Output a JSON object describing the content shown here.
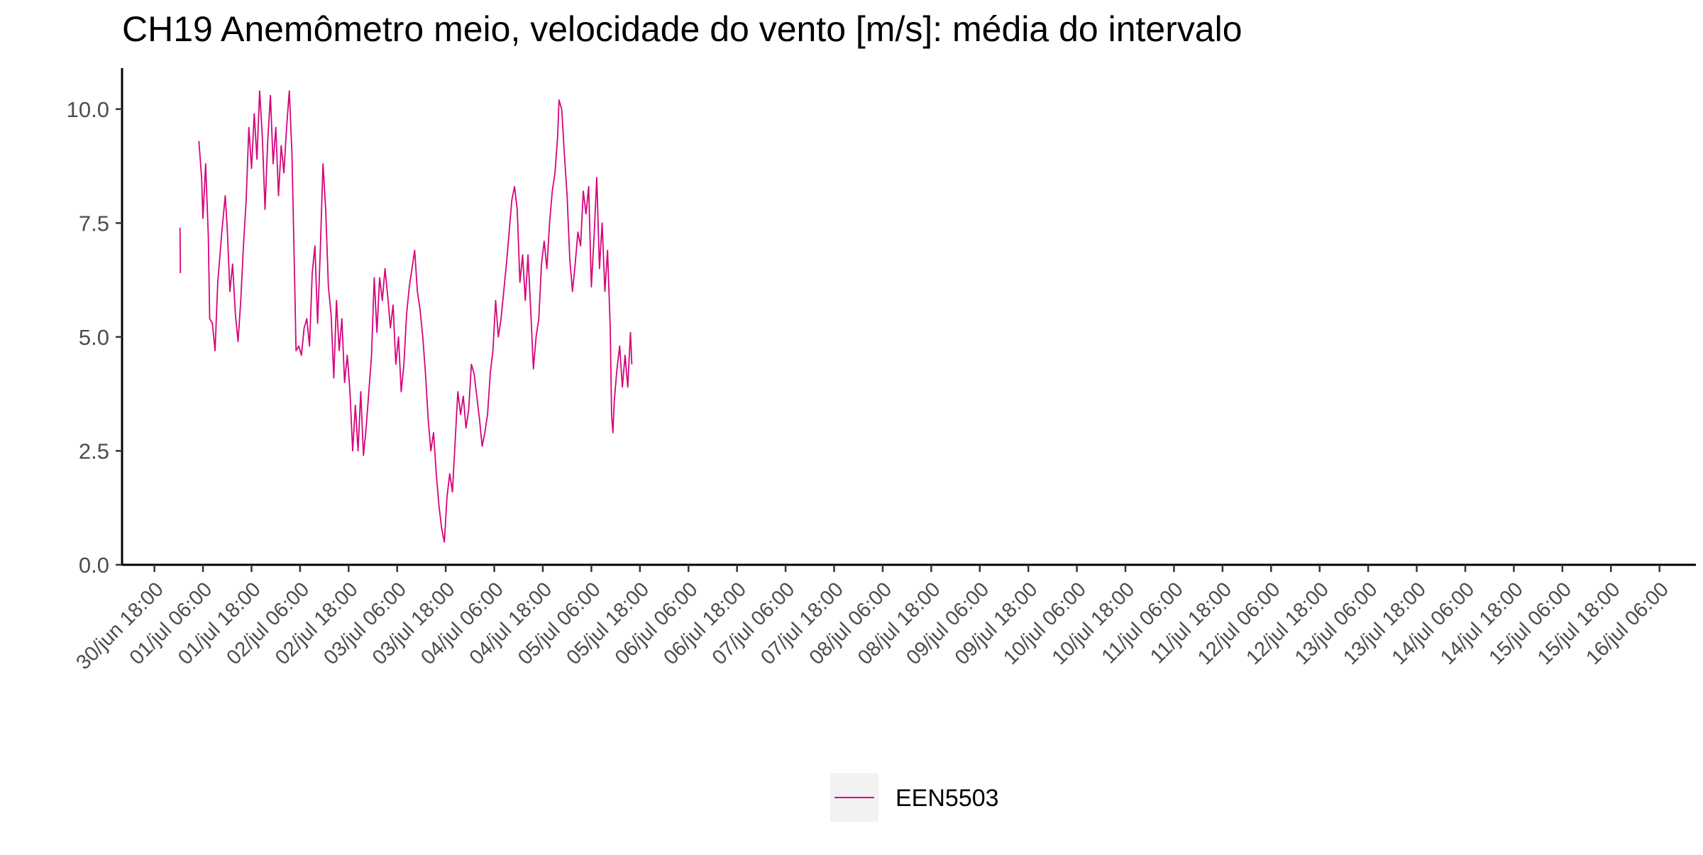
{
  "chart_data": {
    "type": "line",
    "title": "CH19 Anemômetro meio, velocidade do vento [m/s]: média do intervalo",
    "xlabel": "",
    "ylabel": "",
    "ylim": [
      0,
      10.9
    ],
    "xlim": [
      "2019-06-30T10:00",
      "2019-07-16T15:00"
    ],
    "x_ticks": [
      {
        "value": "2019-06-30T18:00",
        "label": "30/jun 18:00"
      },
      {
        "value": "2019-07-01T06:00",
        "label": "01/jul 06:00"
      },
      {
        "value": "2019-07-01T18:00",
        "label": "01/jul 18:00"
      },
      {
        "value": "2019-07-02T06:00",
        "label": "02/jul 06:00"
      },
      {
        "value": "2019-07-02T18:00",
        "label": "02/jul 18:00"
      },
      {
        "value": "2019-07-03T06:00",
        "label": "03/jul 06:00"
      },
      {
        "value": "2019-07-03T18:00",
        "label": "03/jul 18:00"
      },
      {
        "value": "2019-07-04T06:00",
        "label": "04/jul 06:00"
      },
      {
        "value": "2019-07-04T18:00",
        "label": "04/jul 18:00"
      },
      {
        "value": "2019-07-05T06:00",
        "label": "05/jul 06:00"
      },
      {
        "value": "2019-07-05T18:00",
        "label": "05/jul 18:00"
      },
      {
        "value": "2019-07-06T06:00",
        "label": "06/jul 06:00"
      },
      {
        "value": "2019-07-06T18:00",
        "label": "06/jul 18:00"
      },
      {
        "value": "2019-07-07T06:00",
        "label": "07/jul 06:00"
      },
      {
        "value": "2019-07-07T18:00",
        "label": "07/jul 18:00"
      },
      {
        "value": "2019-07-08T06:00",
        "label": "08/jul 06:00"
      },
      {
        "value": "2019-07-08T18:00",
        "label": "08/jul 18:00"
      },
      {
        "value": "2019-07-09T06:00",
        "label": "09/jul 06:00"
      },
      {
        "value": "2019-07-09T18:00",
        "label": "09/jul 18:00"
      },
      {
        "value": "2019-07-10T06:00",
        "label": "10/jul 06:00"
      },
      {
        "value": "2019-07-10T18:00",
        "label": "10/jul 18:00"
      },
      {
        "value": "2019-07-11T06:00",
        "label": "11/jul 06:00"
      },
      {
        "value": "2019-07-11T18:00",
        "label": "11/jul 18:00"
      },
      {
        "value": "2019-07-12T06:00",
        "label": "12/jul 06:00"
      },
      {
        "value": "2019-07-12T18:00",
        "label": "12/jul 18:00"
      },
      {
        "value": "2019-07-13T06:00",
        "label": "13/jul 06:00"
      },
      {
        "value": "2019-07-13T18:00",
        "label": "13/jul 18:00"
      },
      {
        "value": "2019-07-14T06:00",
        "label": "14/jul 06:00"
      },
      {
        "value": "2019-07-14T18:00",
        "label": "14/jul 18:00"
      },
      {
        "value": "2019-07-15T06:00",
        "label": "15/jul 06:00"
      },
      {
        "value": "2019-07-15T18:00",
        "label": "15/jul 18:00"
      },
      {
        "value": "2019-07-16T06:00",
        "label": "16/jul 06:00"
      }
    ],
    "y_ticks": [
      {
        "value": 0,
        "label": "0.0"
      },
      {
        "value": 2.5,
        "label": "2.5"
      },
      {
        "value": 5,
        "label": "5.0"
      },
      {
        "value": 7.5,
        "label": "7.5"
      },
      {
        "value": 10,
        "label": "10.0"
      }
    ],
    "grid": false,
    "legend_position": "bottom",
    "series": [
      {
        "name": "EEN5503",
        "color": "#d6037b",
        "segments": [
          [
            [
              "2019-07-01T00:20",
              7.4
            ],
            [
              "2019-07-01T00:25",
              6.4
            ]
          ],
          [
            [
              "2019-07-01T05:00",
              9.3
            ],
            [
              "2019-07-01T05:40",
              8.5
            ],
            [
              "2019-07-01T06:00",
              7.6
            ],
            [
              "2019-07-01T06:40",
              8.8
            ],
            [
              "2019-07-01T07:20",
              7.2
            ],
            [
              "2019-07-01T07:40",
              5.4
            ],
            [
              "2019-07-01T08:20",
              5.3
            ],
            [
              "2019-07-01T09:00",
              4.7
            ],
            [
              "2019-07-01T09:40",
              6.2
            ],
            [
              "2019-07-01T10:40",
              7.3
            ],
            [
              "2019-07-01T11:30",
              8.1
            ],
            [
              "2019-07-01T12:00",
              7.4
            ],
            [
              "2019-07-01T12:40",
              6.0
            ],
            [
              "2019-07-01T13:20",
              6.6
            ],
            [
              "2019-07-01T14:00",
              5.5
            ],
            [
              "2019-07-01T14:40",
              4.9
            ],
            [
              "2019-07-01T15:20",
              5.8
            ],
            [
              "2019-07-01T16:00",
              7.0
            ],
            [
              "2019-07-01T16:40",
              8.0
            ],
            [
              "2019-07-01T17:20",
              9.6
            ],
            [
              "2019-07-01T18:00",
              8.7
            ],
            [
              "2019-07-01T18:40",
              9.9
            ],
            [
              "2019-07-01T19:20",
              8.9
            ],
            [
              "2019-07-01T20:00",
              10.4
            ],
            [
              "2019-07-01T20:40",
              9.4
            ],
            [
              "2019-07-01T21:20",
              7.8
            ],
            [
              "2019-07-01T22:00",
              9.3
            ],
            [
              "2019-07-01T22:40",
              10.3
            ],
            [
              "2019-07-01T23:20",
              8.8
            ],
            [
              "2019-07-02T00:00",
              9.6
            ],
            [
              "2019-07-02T00:40",
              8.1
            ],
            [
              "2019-07-02T01:20",
              9.2
            ],
            [
              "2019-07-02T02:00",
              8.6
            ],
            [
              "2019-07-02T02:40",
              9.6
            ],
            [
              "2019-07-02T03:20",
              10.4
            ],
            [
              "2019-07-02T04:00",
              9.0
            ],
            [
              "2019-07-02T04:40",
              6.2
            ],
            [
              "2019-07-02T05:00",
              4.7
            ],
            [
              "2019-07-02T05:40",
              4.8
            ],
            [
              "2019-07-02T06:20",
              4.6
            ],
            [
              "2019-07-02T07:00",
              5.2
            ],
            [
              "2019-07-02T07:40",
              5.4
            ],
            [
              "2019-07-02T08:20",
              4.8
            ],
            [
              "2019-07-02T09:00",
              6.4
            ],
            [
              "2019-07-02T09:40",
              7.0
            ],
            [
              "2019-07-02T10:20",
              5.3
            ],
            [
              "2019-07-02T11:00",
              6.9
            ],
            [
              "2019-07-02T11:40",
              8.8
            ],
            [
              "2019-07-02T12:20",
              7.8
            ],
            [
              "2019-07-02T13:00",
              6.1
            ],
            [
              "2019-07-02T13:40",
              5.5
            ],
            [
              "2019-07-02T14:20",
              4.1
            ],
            [
              "2019-07-02T15:00",
              5.8
            ],
            [
              "2019-07-02T15:40",
              4.7
            ],
            [
              "2019-07-02T16:20",
              5.4
            ],
            [
              "2019-07-02T17:00",
              4.0
            ],
            [
              "2019-07-02T17:40",
              4.6
            ],
            [
              "2019-07-02T18:20",
              3.8
            ],
            [
              "2019-07-02T19:00",
              2.5
            ],
            [
              "2019-07-02T19:40",
              3.5
            ],
            [
              "2019-07-02T20:20",
              2.5
            ],
            [
              "2019-07-02T21:00",
              3.8
            ],
            [
              "2019-07-02T21:40",
              2.4
            ],
            [
              "2019-07-02T22:20",
              3.0
            ],
            [
              "2019-07-02T23:00",
              3.8
            ],
            [
              "2019-07-02T23:40",
              4.6
            ],
            [
              "2019-07-03T00:20",
              6.3
            ],
            [
              "2019-07-03T01:00",
              5.1
            ],
            [
              "2019-07-03T01:40",
              6.3
            ],
            [
              "2019-07-03T02:20",
              5.8
            ],
            [
              "2019-07-03T03:00",
              6.5
            ],
            [
              "2019-07-03T03:40",
              5.9
            ],
            [
              "2019-07-03T04:20",
              5.2
            ],
            [
              "2019-07-03T05:00",
              5.7
            ],
            [
              "2019-07-03T05:40",
              4.4
            ],
            [
              "2019-07-03T06:20",
              5.0
            ],
            [
              "2019-07-03T07:00",
              3.8
            ],
            [
              "2019-07-03T07:40",
              4.4
            ],
            [
              "2019-07-03T08:20",
              5.5
            ],
            [
              "2019-07-03T09:00",
              6.1
            ],
            [
              "2019-07-03T09:40",
              6.5
            ],
            [
              "2019-07-03T10:20",
              6.9
            ],
            [
              "2019-07-03T11:00",
              6.0
            ],
            [
              "2019-07-03T11:40",
              5.6
            ],
            [
              "2019-07-03T12:20",
              5.0
            ],
            [
              "2019-07-03T13:00",
              4.2
            ],
            [
              "2019-07-03T13:40",
              3.2
            ],
            [
              "2019-07-03T14:20",
              2.5
            ],
            [
              "2019-07-03T15:00",
              2.9
            ],
            [
              "2019-07-03T15:40",
              2.0
            ],
            [
              "2019-07-03T16:20",
              1.3
            ],
            [
              "2019-07-03T17:00",
              0.8
            ],
            [
              "2019-07-03T17:40",
              0.5
            ],
            [
              "2019-07-03T18:20",
              1.5
            ],
            [
              "2019-07-03T19:00",
              2.0
            ],
            [
              "2019-07-03T19:40",
              1.6
            ],
            [
              "2019-07-03T20:20",
              2.7
            ],
            [
              "2019-07-03T21:00",
              3.8
            ],
            [
              "2019-07-03T21:40",
              3.3
            ],
            [
              "2019-07-03T22:20",
              3.7
            ],
            [
              "2019-07-03T23:00",
              3.0
            ],
            [
              "2019-07-03T23:40",
              3.4
            ],
            [
              "2019-07-04T00:20",
              4.4
            ],
            [
              "2019-07-04T01:00",
              4.2
            ],
            [
              "2019-07-04T01:40",
              3.7
            ],
            [
              "2019-07-04T02:20",
              3.2
            ],
            [
              "2019-07-04T03:00",
              2.6
            ],
            [
              "2019-07-04T03:40",
              2.9
            ],
            [
              "2019-07-04T04:20",
              3.3
            ],
            [
              "2019-07-04T05:00",
              4.2
            ],
            [
              "2019-07-04T05:40",
              4.7
            ],
            [
              "2019-07-04T06:20",
              5.8
            ],
            [
              "2019-07-04T07:00",
              5.0
            ],
            [
              "2019-07-04T07:40",
              5.4
            ],
            [
              "2019-07-04T08:20",
              6.0
            ],
            [
              "2019-07-04T09:00",
              6.6
            ],
            [
              "2019-07-04T09:40",
              7.3
            ],
            [
              "2019-07-04T10:20",
              8.0
            ],
            [
              "2019-07-04T11:00",
              8.3
            ],
            [
              "2019-07-04T11:40",
              7.8
            ],
            [
              "2019-07-04T12:20",
              6.2
            ],
            [
              "2019-07-04T13:00",
              6.8
            ],
            [
              "2019-07-04T13:40",
              5.8
            ],
            [
              "2019-07-04T14:20",
              6.8
            ],
            [
              "2019-07-04T15:00",
              5.6
            ],
            [
              "2019-07-04T15:40",
              4.3
            ],
            [
              "2019-07-04T16:20",
              5.0
            ],
            [
              "2019-07-04T17:00",
              5.4
            ],
            [
              "2019-07-04T17:40",
              6.6
            ],
            [
              "2019-07-04T18:20",
              7.1
            ],
            [
              "2019-07-04T19:00",
              6.5
            ],
            [
              "2019-07-04T19:40",
              7.5
            ],
            [
              "2019-07-04T20:20",
              8.2
            ],
            [
              "2019-07-04T21:00",
              8.6
            ],
            [
              "2019-07-04T21:40",
              9.4
            ],
            [
              "2019-07-04T22:00",
              10.2
            ],
            [
              "2019-07-04T22:40",
              10.0
            ],
            [
              "2019-07-04T23:20",
              9.0
            ],
            [
              "2019-07-05T00:00",
              8.1
            ],
            [
              "2019-07-05T00:40",
              6.7
            ],
            [
              "2019-07-05T01:20",
              6.0
            ],
            [
              "2019-07-05T02:00",
              6.6
            ],
            [
              "2019-07-05T02:40",
              7.3
            ],
            [
              "2019-07-05T03:20",
              7.0
            ],
            [
              "2019-07-05T04:00",
              8.2
            ],
            [
              "2019-07-05T04:40",
              7.7
            ],
            [
              "2019-07-05T05:20",
              8.3
            ],
            [
              "2019-07-05T06:00",
              6.1
            ],
            [
              "2019-07-05T06:40",
              7.2
            ],
            [
              "2019-07-05T07:20",
              8.5
            ],
            [
              "2019-07-05T08:00",
              6.5
            ],
            [
              "2019-07-05T08:40",
              7.5
            ],
            [
              "2019-07-05T09:20",
              6.0
            ],
            [
              "2019-07-05T10:00",
              6.9
            ],
            [
              "2019-07-05T10:40",
              5.2
            ],
            [
              "2019-07-05T11:00",
              3.3
            ],
            [
              "2019-07-05T11:20",
              2.9
            ],
            [
              "2019-07-05T11:40",
              3.6
            ],
            [
              "2019-07-05T12:20",
              4.3
            ],
            [
              "2019-07-05T13:00",
              4.8
            ],
            [
              "2019-07-05T13:40",
              3.9
            ],
            [
              "2019-07-05T14:20",
              4.6
            ],
            [
              "2019-07-05T15:00",
              3.9
            ],
            [
              "2019-07-05T15:40",
              5.1
            ],
            [
              "2019-07-05T16:00",
              4.4
            ]
          ]
        ]
      }
    ]
  }
}
